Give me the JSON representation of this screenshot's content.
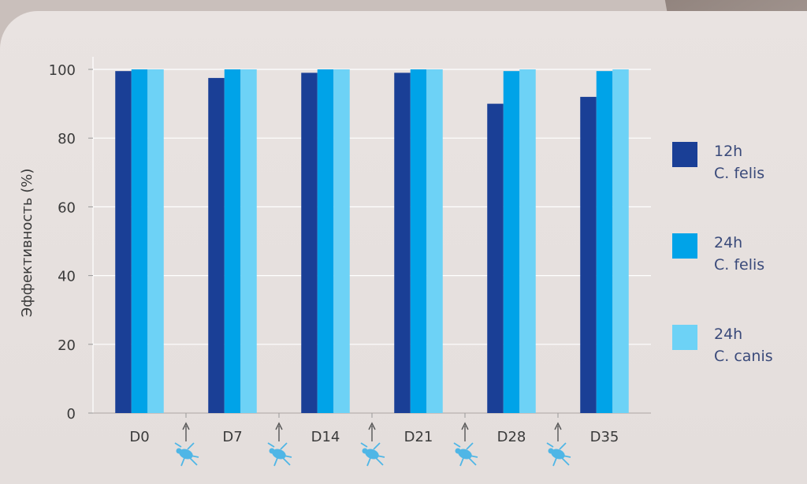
{
  "chart_data": {
    "type": "bar",
    "categories": [
      "D0",
      "D7",
      "D14",
      "D21",
      "D28",
      "D35"
    ],
    "series": [
      {
        "name_line1": "12h",
        "name_line2": "C. felis",
        "color": "#1a3f96",
        "values": [
          99.5,
          97.5,
          99,
          99,
          90,
          92
        ]
      },
      {
        "name_line1": "24h",
        "name_line2": "C. felis",
        "color": "#00a3e8",
        "values": [
          100,
          100,
          100,
          100,
          99.5,
          99.5
        ]
      },
      {
        "name_line1": "24h",
        "name_line2": "C. canis",
        "color": "#6dd2f6",
        "values": [
          100,
          100,
          100,
          100,
          100,
          100
        ]
      }
    ],
    "ylabel": "Эффективность (%)",
    "ylim": [
      0,
      100
    ],
    "yticks": [
      "0",
      "20",
      "40",
      "60",
      "80",
      "100"
    ],
    "grid": true,
    "legend_position": "right",
    "annotations": {
      "between_categories": "arrow-up-icon and flea-icon (infestation marker)",
      "arrow_color": "#555555",
      "flea_color": "#4fb6e6"
    }
  }
}
